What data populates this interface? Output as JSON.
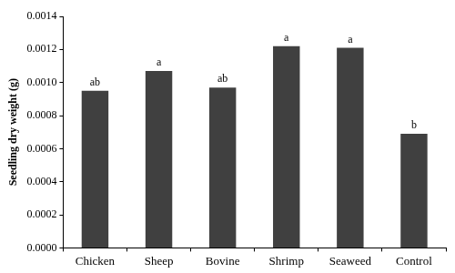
{
  "chart_data": {
    "type": "bar",
    "y_label": "Seedling dry weight (g)",
    "categories": [
      "Chicken",
      "Sheep",
      "Bovine",
      "Shrimp",
      "Seaweed",
      "Control"
    ],
    "values": [
      0.00095,
      0.00107,
      0.00097,
      0.00122,
      0.00121,
      0.00069
    ],
    "annotations": [
      "ab",
      "a",
      "ab",
      "a",
      "a",
      "b"
    ],
    "color": "#404040",
    "ylim": [
      0,
      0.0014
    ],
    "yticks": [
      {
        "value": 0,
        "label": "0.0000"
      },
      {
        "value": 0.0002,
        "label": "0.0002"
      },
      {
        "value": 0.0004,
        "label": "0.0004"
      },
      {
        "value": 0.0006,
        "label": "0.0006"
      },
      {
        "value": 0.0008,
        "label": "0.0008"
      },
      {
        "value": 0.001,
        "label": "0.0010"
      },
      {
        "value": 0.0012,
        "label": "0.0012"
      },
      {
        "value": 0.0014,
        "label": "0.0014"
      }
    ],
    "grid": false
  }
}
